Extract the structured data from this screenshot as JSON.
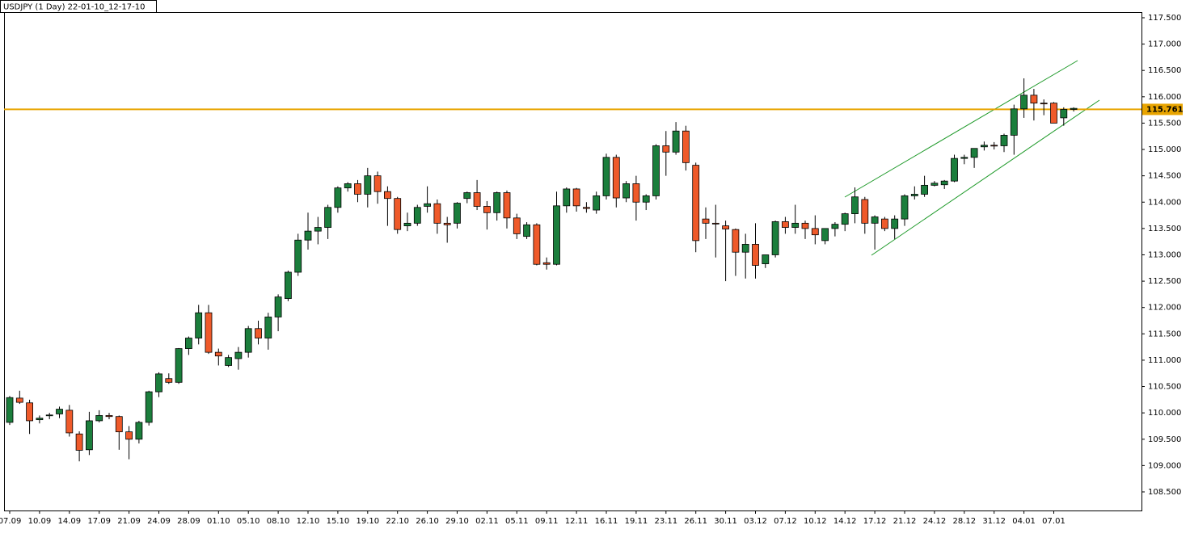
{
  "chart_data": {
    "type": "candlestick",
    "title": "USDJPY (1 Day) 22-01-10_12-17-10",
    "up_color": "#1b7e3c",
    "down_color": "#ef5a2a",
    "categories": [
      "07.09",
      null,
      null,
      "10.09",
      null,
      null,
      "14.09",
      null,
      null,
      "17.09",
      null,
      null,
      "21.09",
      null,
      null,
      "24.09",
      null,
      null,
      "28.09",
      null,
      null,
      "01.10",
      null,
      null,
      "05.10",
      null,
      null,
      "08.10",
      null,
      null,
      "12.10",
      null,
      null,
      "15.10",
      null,
      null,
      "19.10",
      null,
      null,
      "22.10",
      null,
      null,
      "26.10",
      null,
      null,
      "29.10",
      null,
      null,
      "02.11",
      null,
      null,
      "05.11",
      null,
      null,
      "09.11",
      null,
      null,
      "12.11",
      null,
      null,
      "16.11",
      null,
      null,
      "19.11",
      null,
      null,
      "23.11",
      null,
      null,
      "26.11",
      null,
      null,
      "30.11",
      null,
      null,
      "03.12",
      null,
      null,
      "07.12",
      null,
      null,
      "10.12",
      null,
      null,
      "14.12",
      null,
      null,
      "17.12",
      null,
      null,
      "21.12",
      null,
      null,
      "24.12",
      null,
      null,
      "28.12",
      null,
      null,
      "31.12",
      null,
      null,
      "04.01",
      null,
      null,
      "07.01",
      null,
      null
    ],
    "open": [
      109.82,
      110.28,
      110.19,
      109.87,
      109.95,
      109.98,
      110.05,
      109.6,
      109.3,
      109.85,
      109.95,
      109.93,
      109.64,
      109.5,
      109.82,
      110.4,
      110.65,
      110.58,
      111.22,
      111.42,
      111.9,
      111.15,
      110.9,
      111.03,
      111.15,
      111.6,
      111.42,
      111.82,
      112.17,
      112.67,
      113.28,
      113.45,
      113.52,
      113.9,
      114.27,
      114.35,
      114.15,
      114.5,
      114.2,
      114.07,
      113.55,
      113.6,
      113.92,
      113.97,
      113.6,
      113.6,
      114.07,
      114.18,
      113.92,
      113.8,
      114.18,
      113.7,
      113.35,
      113.57,
      112.85,
      112.82,
      113.93,
      114.25,
      113.9,
      113.85,
      114.12,
      114.85,
      114.08,
      114.35,
      114.0,
      114.12,
      115.07,
      114.95,
      115.35,
      114.7,
      113.68,
      113.6,
      113.55,
      113.48,
      113.05,
      113.2,
      112.83,
      113.0,
      113.63,
      113.52,
      113.6,
      113.5,
      113.27,
      113.5,
      113.58,
      113.78,
      114.05,
      113.6,
      113.68,
      113.5,
      113.68,
      114.12,
      114.15,
      114.32,
      114.33,
      114.4,
      114.83,
      114.85,
      115.05,
      115.08,
      115.07,
      115.27,
      115.77,
      116.03,
      115.88,
      115.88,
      115.6,
      115.76
    ],
    "high": [
      110.32,
      110.42,
      110.25,
      109.95,
      110.0,
      110.12,
      110.15,
      109.65,
      110.02,
      110.05,
      110.0,
      109.95,
      109.75,
      109.85,
      110.42,
      110.77,
      110.75,
      111.23,
      111.45,
      112.05,
      112.05,
      111.22,
      111.1,
      111.25,
      111.65,
      111.75,
      111.9,
      112.25,
      112.7,
      113.4,
      113.8,
      113.72,
      113.95,
      114.3,
      114.38,
      114.42,
      114.65,
      114.58,
      114.3,
      114.1,
      113.8,
      113.95,
      114.3,
      114.05,
      113.72,
      114.0,
      114.2,
      114.42,
      114.02,
      114.2,
      114.22,
      113.78,
      113.62,
      113.6,
      112.95,
      114.2,
      114.28,
      114.27,
      114.0,
      114.2,
      114.92,
      114.9,
      114.4,
      114.5,
      114.15,
      115.1,
      115.35,
      115.52,
      115.45,
      114.75,
      113.9,
      113.95,
      113.65,
      113.5,
      113.4,
      113.6,
      113.0,
      113.65,
      113.72,
      113.95,
      113.65,
      113.75,
      113.5,
      113.62,
      113.8,
      114.28,
      114.1,
      113.75,
      113.72,
      113.75,
      114.15,
      114.3,
      114.5,
      114.4,
      114.42,
      114.9,
      114.9,
      115.02,
      115.15,
      115.14,
      115.3,
      115.85,
      116.35,
      116.15,
      115.95,
      115.9,
      115.8,
      115.8
    ],
    "low": [
      109.77,
      110.17,
      109.6,
      109.8,
      109.88,
      109.9,
      109.55,
      109.08,
      109.2,
      109.82,
      109.88,
      109.3,
      109.12,
      109.42,
      109.76,
      110.3,
      110.55,
      110.55,
      111.1,
      111.3,
      111.12,
      110.9,
      110.87,
      110.82,
      111.05,
      111.3,
      111.2,
      111.55,
      112.12,
      112.6,
      113.1,
      113.2,
      113.3,
      113.8,
      114.2,
      114.0,
      113.9,
      113.97,
      113.55,
      113.4,
      113.45,
      113.55,
      113.8,
      113.4,
      113.23,
      113.5,
      113.98,
      113.85,
      113.48,
      113.65,
      113.5,
      113.3,
      113.3,
      112.8,
      112.72,
      112.8,
      113.8,
      113.82,
      113.8,
      113.78,
      114.05,
      113.9,
      114.0,
      113.65,
      113.85,
      114.05,
      114.5,
      114.9,
      114.6,
      113.05,
      113.3,
      112.95,
      112.5,
      112.6,
      112.55,
      112.55,
      112.75,
      112.95,
      113.4,
      113.4,
      113.3,
      113.2,
      113.2,
      113.35,
      113.45,
      113.6,
      113.4,
      113.1,
      113.45,
      113.3,
      113.55,
      114.05,
      114.1,
      114.3,
      114.25,
      114.38,
      114.72,
      114.65,
      114.98,
      115.0,
      114.95,
      114.9,
      115.6,
      115.55,
      115.65,
      115.5,
      115.45,
      115.72
    ],
    "close": [
      110.29,
      110.2,
      109.85,
      109.9,
      109.96,
      110.07,
      109.62,
      109.29,
      109.85,
      109.95,
      109.93,
      109.64,
      109.5,
      109.82,
      110.4,
      110.74,
      110.58,
      111.22,
      111.42,
      111.9,
      111.15,
      111.08,
      111.05,
      111.15,
      111.6,
      111.42,
      111.82,
      112.2,
      112.67,
      113.28,
      113.45,
      113.52,
      113.9,
      114.27,
      114.35,
      114.15,
      114.5,
      114.2,
      114.07,
      113.48,
      113.6,
      113.9,
      113.97,
      113.6,
      113.57,
      113.98,
      114.18,
      113.92,
      113.8,
      114.18,
      113.7,
      113.4,
      113.57,
      112.82,
      112.82,
      113.93,
      114.25,
      113.93,
      113.88,
      114.12,
      114.85,
      114.08,
      114.35,
      114.0,
      114.12,
      115.07,
      114.95,
      115.35,
      114.75,
      113.27,
      113.6,
      113.59,
      113.49,
      113.05,
      113.2,
      112.8,
      113.0,
      113.63,
      113.52,
      113.6,
      113.5,
      113.38,
      113.5,
      113.58,
      113.78,
      114.1,
      113.6,
      113.72,
      113.5,
      113.68,
      114.12,
      114.15,
      114.32,
      114.36,
      114.4,
      114.83,
      114.85,
      115.02,
      115.08,
      115.07,
      115.27,
      115.77,
      116.03,
      115.88,
      115.87,
      115.5,
      115.76,
      115.78
    ],
    "ylim": [
      108.147,
      117.607
    ],
    "yticks": [
      {
        "value": 108.5,
        "label": "108.500"
      },
      {
        "value": 109,
        "label": "109.000"
      },
      {
        "value": 109.5,
        "label": "109.500"
      },
      {
        "value": 110,
        "label": "110.000"
      },
      {
        "value": 110.5,
        "label": "110.500"
      },
      {
        "value": 111,
        "label": "111.000"
      },
      {
        "value": 111.5,
        "label": "111.500"
      },
      {
        "value": 112,
        "label": "112.000"
      },
      {
        "value": 112.5,
        "label": "112.500"
      },
      {
        "value": 113,
        "label": "113.000"
      },
      {
        "value": 113.5,
        "label": "113.500"
      },
      {
        "value": 114,
        "label": "114.000"
      },
      {
        "value": 114.5,
        "label": "114.500"
      },
      {
        "value": 115,
        "label": "115.000"
      },
      {
        "value": 115.5,
        "label": "115.500"
      },
      {
        "value": 116,
        "label": "116.000"
      },
      {
        "value": 116.5,
        "label": "116.500"
      },
      {
        "value": 117,
        "label": "117.000"
      },
      {
        "value": 117.5,
        "label": "117.500"
      }
    ],
    "level": {
      "value": 115.761,
      "color": "#e8a400"
    }
  }
}
